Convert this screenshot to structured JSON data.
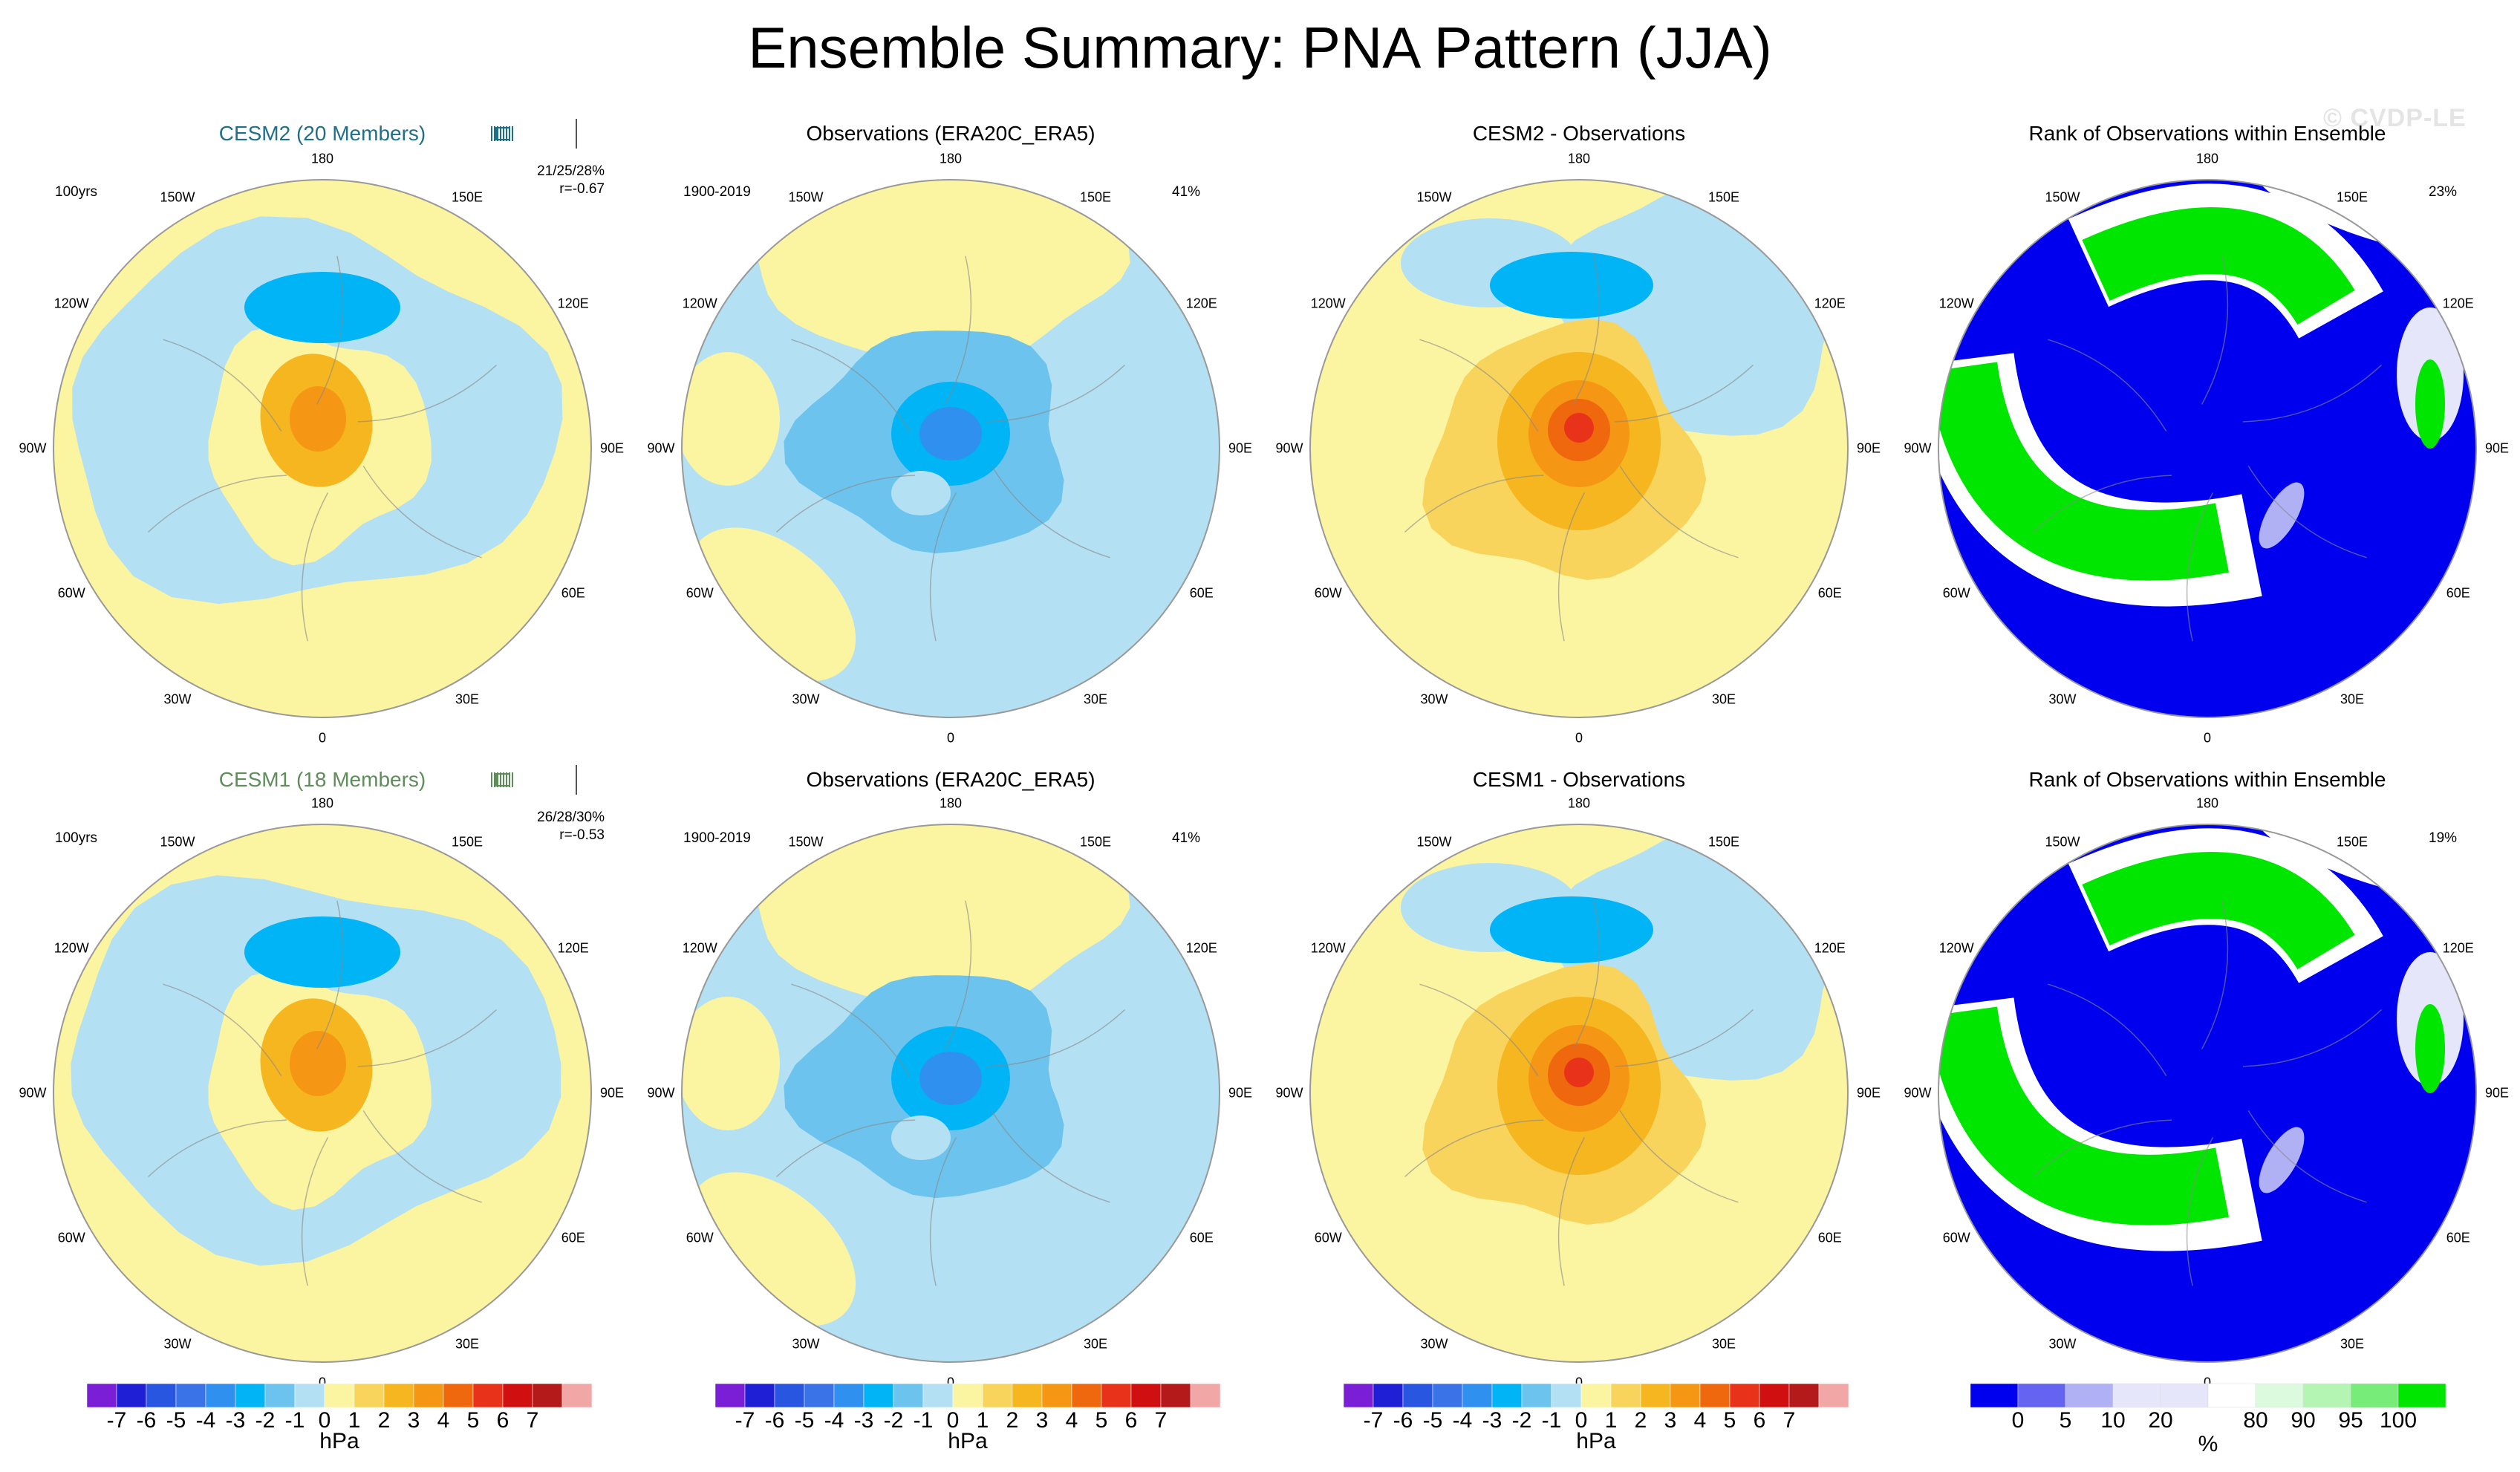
{
  "title": "Ensemble Summary: PNA Pattern (JJA)",
  "watermark": "© CVDP-LE",
  "lon_labels": [
    "180",
    "150E",
    "120E",
    "90E",
    "60E",
    "30E",
    "0",
    "30W",
    "60W",
    "90W",
    "120W",
    "150W"
  ],
  "rows": [
    {
      "model_title": "CESM2 (20 Members)",
      "years": "100yrs",
      "stats": "21/25/28%",
      "corr": "r=-0.67",
      "obs_title": "Observations (ERA20C_ERA5)",
      "obs_period": "1900-2019",
      "obs_pct": "41%",
      "diff_title": "CESM2 - Observations",
      "rank_title": "Rank of Observations within Ensemble",
      "rank_pct": "23%",
      "strip_color": "#1f6f8b"
    },
    {
      "model_title": "CESM1 (18 Members)",
      "years": "100yrs",
      "stats": "26/28/30%",
      "corr": "r=-0.53",
      "obs_title": "Observations (ERA20C_ERA5)",
      "obs_period": "1900-2019",
      "obs_pct": "41%",
      "diff_title": "CESM1 - Observations",
      "rank_title": "Rank of Observations within Ensemble",
      "rank_pct": "19%",
      "strip_color": "#5e8d5a"
    }
  ],
  "chart_data": [
    {
      "type": "heatmap",
      "title": "Ensemble Summary: PNA Pattern (JJA)",
      "projection": "north-polar-stereographic",
      "colorbar_hpa": {
        "unit": "hPa",
        "tick_labels": [
          "-7",
          "-6",
          "-5",
          "-4",
          "-3",
          "-2",
          "-1",
          "0",
          "1",
          "2",
          "3",
          "4",
          "5",
          "6",
          "7"
        ],
        "colors": [
          "#7a1fd6",
          "#1f1fd6",
          "#2856e0",
          "#3a73e8",
          "#2f90f0",
          "#00b4f5",
          "#6cc4ee",
          "#b4e0f3",
          "#fbf4a0",
          "#f8d45c",
          "#f6b620",
          "#f59614",
          "#f0680e",
          "#e8331a",
          "#d01010",
          "#b41a1a",
          "#f2a7a7"
        ],
        "range": [
          -7,
          7
        ]
      },
      "colorbar_rank": {
        "unit": "%",
        "tick_labels": [
          "0",
          "5",
          "10",
          "20",
          "80",
          "90",
          "95",
          "100"
        ],
        "colors": [
          "#0000ee",
          "#6464f0",
          "#b0b0f5",
          "#e6e6fa",
          "#e6e6fa",
          "#ffffff",
          "#dcfade",
          "#b4f5b4",
          "#78ec78",
          "#00e600"
        ]
      },
      "panels": [
        {
          "row": 1,
          "panel": "CESM2 (20 Members)",
          "center_max_hpa": 4,
          "pattern": "weak positive polar, negative Pacific ring"
        },
        {
          "row": 1,
          "panel": "Observations (ERA20C_ERA5)",
          "center_min_hpa": -5,
          "pattern": "strong negative polar"
        },
        {
          "row": 1,
          "panel": "CESM2 - Observations",
          "center_max_hpa": 6,
          "pattern": "strong positive polar"
        },
        {
          "row": 1,
          "panel": "Rank of Observations within Ensemble",
          "percent": "23%",
          "pattern": "0-5% over pole, 95-100% bands over Pacific and Atlantic"
        },
        {
          "row": 2,
          "panel": "CESM1 (18 Members)",
          "center_max_hpa": 3,
          "pattern": "weak positive polar"
        },
        {
          "row": 2,
          "panel": "Observations (ERA20C_ERA5)",
          "center_min_hpa": -5,
          "pattern": "strong negative polar"
        },
        {
          "row": 2,
          "panel": "CESM1 - Observations",
          "center_max_hpa": 6,
          "pattern": "strong positive polar"
        },
        {
          "row": 2,
          "panel": "Rank of Observations within Ensemble",
          "percent": "19%",
          "pattern": "0-5% over pole, 95-100% bands over Pacific and Atlantic"
        }
      ]
    }
  ]
}
